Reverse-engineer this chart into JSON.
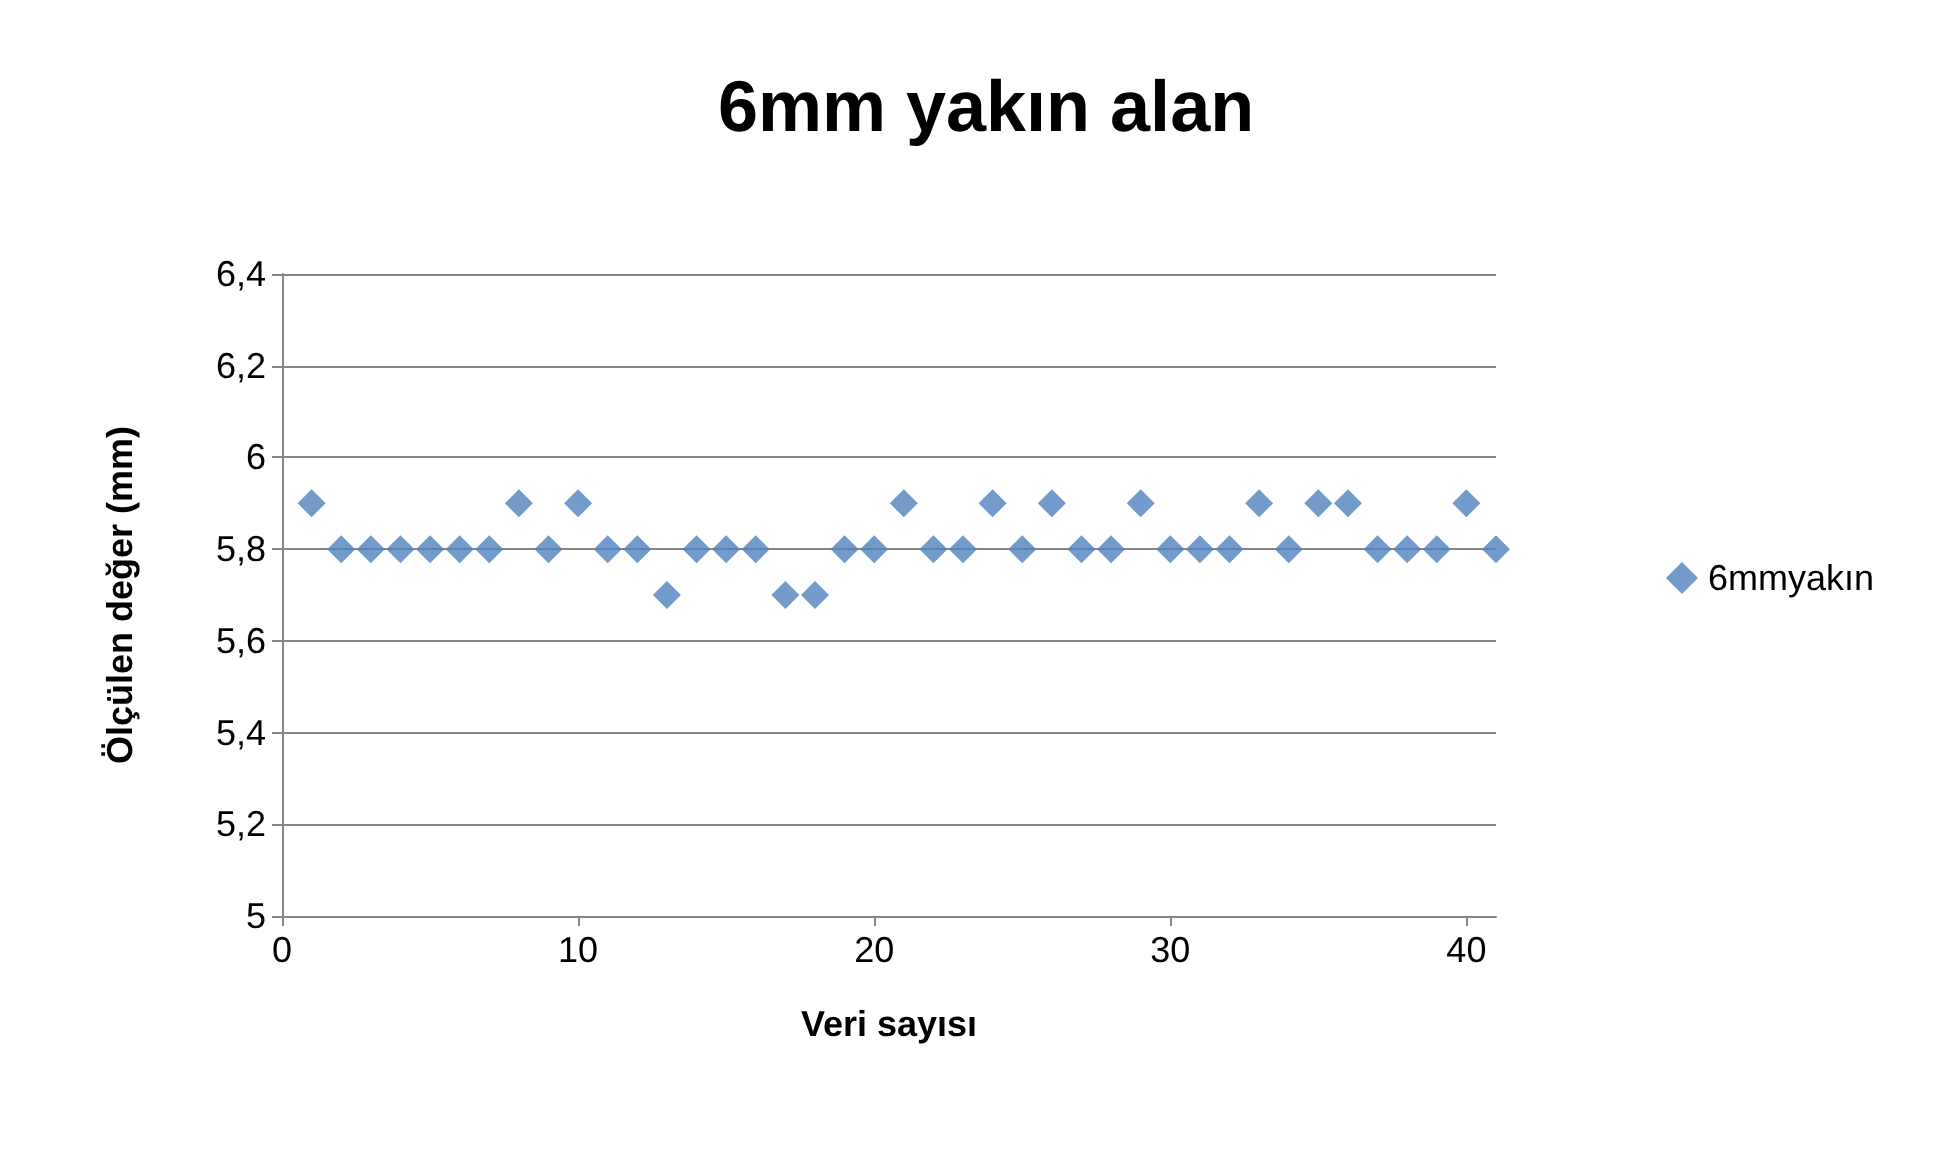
{
  "chart_data": {
    "type": "scatter",
    "title": "6mm yakın alan",
    "xlabel": "Veri sayısı",
    "ylabel": "Ölçülen değer (mm)",
    "x": [
      1,
      2,
      3,
      4,
      5,
      6,
      7,
      8,
      9,
      10,
      11,
      12,
      13,
      14,
      15,
      16,
      17,
      18,
      19,
      20,
      21,
      22,
      23,
      24,
      25,
      26,
      27,
      28,
      29,
      30,
      31,
      32,
      33,
      34,
      35,
      36,
      37,
      38,
      39,
      40,
      41
    ],
    "series": [
      {
        "name": "6mmyakın",
        "color": "#4f81bd",
        "values": [
          5.9,
          5.8,
          5.8,
          5.8,
          5.8,
          5.8,
          5.8,
          5.9,
          5.8,
          5.9,
          5.8,
          5.8,
          5.7,
          5.8,
          5.8,
          5.8,
          5.7,
          5.7,
          5.8,
          5.8,
          5.9,
          5.8,
          5.8,
          5.9,
          5.8,
          5.9,
          5.8,
          5.8,
          5.9,
          5.8,
          5.8,
          5.8,
          5.9,
          5.8,
          5.9,
          5.9,
          5.8,
          5.8,
          5.8,
          5.9,
          5.8
        ]
      }
    ],
    "xlim": [
      0,
      41
    ],
    "xticks": [
      0,
      10,
      20,
      30,
      40
    ],
    "ylim": [
      5,
      6.4
    ],
    "yticks": [
      5,
      {
        "value": 5.2,
        "label": "5,2"
      },
      {
        "value": 5.4,
        "label": "5,4"
      },
      {
        "value": 5.6,
        "label": "5,6"
      },
      {
        "value": 5.8,
        "label": "5,8"
      },
      6,
      {
        "value": 6.2,
        "label": "6,2"
      },
      {
        "value": 6.4,
        "label": "6,4"
      }
    ],
    "grid": "y",
    "legend": "right",
    "marker": "diamond"
  }
}
